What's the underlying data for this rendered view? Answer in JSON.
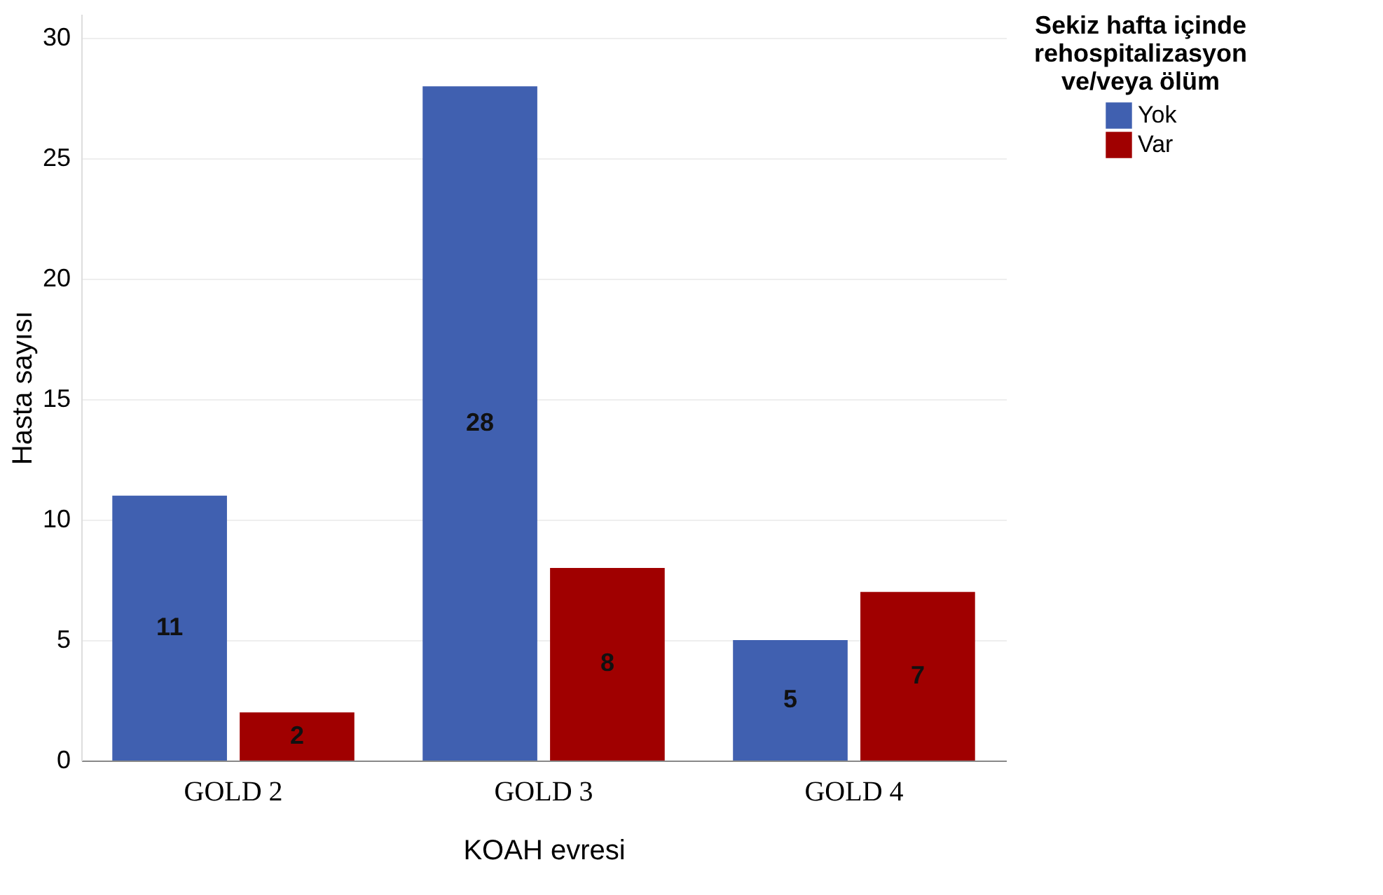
{
  "chart_data": {
    "type": "bar",
    "xlabel": "KOAH evresi",
    "ylabel": "Hasta sayısı",
    "legend_title": "Sekiz hafta içinde rehospitalizasyon ve/veya ölüm",
    "categories": [
      "GOLD  2",
      "GOLD 3",
      "GOLD 4"
    ],
    "series": [
      {
        "name": "Yok",
        "color": "#4060b0",
        "values": [
          11,
          28,
          5
        ]
      },
      {
        "name": "Var",
        "color": "#a00000",
        "values": [
          2,
          8,
          7
        ]
      }
    ],
    "ylim": [
      0,
      31
    ],
    "yticks": [
      0,
      5,
      10,
      15,
      20,
      25,
      30
    ],
    "grid": "y",
    "legend": "top right",
    "data_labels": true
  }
}
